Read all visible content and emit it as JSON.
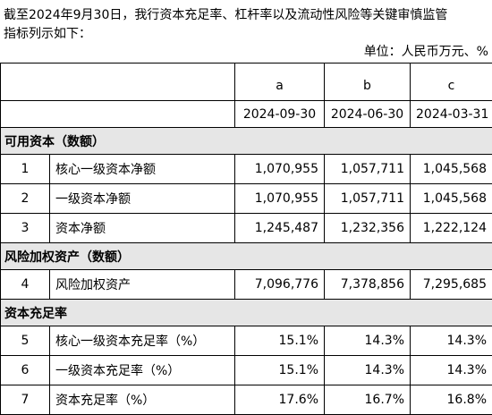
{
  "intro": [
    "截至2024年9月30日，我行资本充足率、杠杆率以及流动性风险等关键审慎监管",
    "指标列示如下："
  ],
  "unit": "单位：人民币万元、%",
  "table": {
    "columns": [
      "a",
      "b",
      "c"
    ],
    "dates": [
      "2024-09-30",
      "2024-06-30",
      "2024-03-31"
    ],
    "sections": [
      {
        "title": "可用资本（数额）",
        "rows": [
          {
            "no": "1",
            "label": "核心一级资本净额",
            "values": [
              "1,070,955",
              "1,057,711",
              "1,045,568"
            ]
          },
          {
            "no": "2",
            "label": "一级资本净额",
            "values": [
              "1,070,955",
              "1,057,711",
              "1,045,568"
            ]
          },
          {
            "no": "3",
            "label": "资本净额",
            "values": [
              "1,245,487",
              "1,232,356",
              "1,222,124"
            ]
          }
        ]
      },
      {
        "title": "风险加权资产（数额）",
        "rows": [
          {
            "no": "4",
            "label": "风险加权资产",
            "values": [
              "7,096,776",
              "7,378,856",
              "7,295,685"
            ]
          }
        ]
      },
      {
        "title": "资本充足率",
        "rows": [
          {
            "no": "5",
            "label": "核心一级资本充足率（%）",
            "values": [
              "15.1%",
              "14.3%",
              "14.3%"
            ]
          },
          {
            "no": "6",
            "label": "一级资本充足率（%）",
            "values": [
              "15.1%",
              "14.3%",
              "14.3%"
            ]
          },
          {
            "no": "7",
            "label": "资本充足率（%）",
            "values": [
              "17.6%",
              "16.7%",
              "16.8%"
            ]
          }
        ]
      }
    ]
  }
}
